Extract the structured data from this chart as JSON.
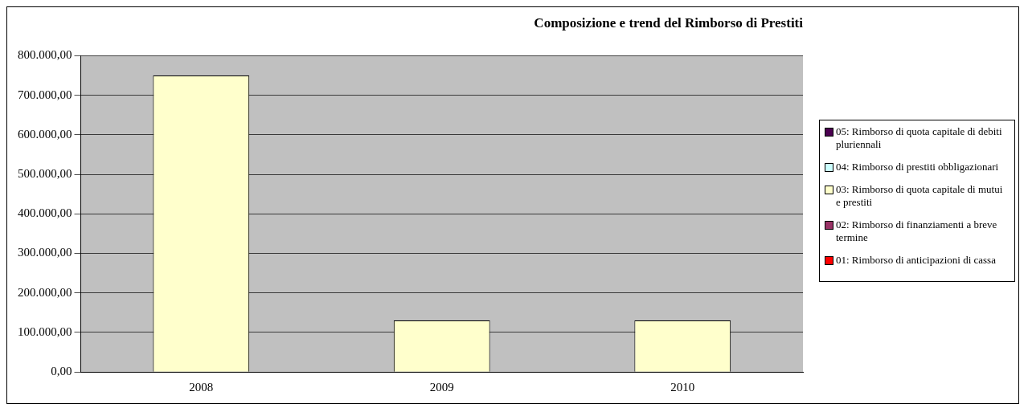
{
  "chart_data": {
    "type": "bar",
    "title": "Composizione e trend del Rimborso di Prestiti",
    "categories": [
      "2008",
      "2009",
      "2010"
    ],
    "stacked": true,
    "legend": "right",
    "grid": "y",
    "series": [
      {
        "name": "01: Rimborso di anticipazioni di cassa",
        "color": "#ff0000",
        "values": [
          0,
          0,
          0
        ]
      },
      {
        "name": "02: Rimborso di finanziamenti a breve termine",
        "color": "#993366",
        "values": [
          0,
          0,
          0
        ]
      },
      {
        "name": "03: Rimborso di quota capitale di mutui e prestiti",
        "color": "#ffffcc",
        "values": [
          750000,
          130000,
          130000
        ]
      },
      {
        "name": "04: Rimborso di prestiti obbligazionari",
        "color": "#ccffff",
        "values": [
          0,
          0,
          0
        ]
      },
      {
        "name": "05: Rimborso di quota capitale di debiti pluriennali",
        "color": "#4b0050",
        "values": [
          0,
          0,
          0
        ]
      }
    ],
    "ylim": [
      0,
      800000
    ],
    "yticks": [
      {
        "value": 0,
        "label": "0,00"
      },
      {
        "value": 100000,
        "label": "100.000,00"
      },
      {
        "value": 200000,
        "label": "200.000,00"
      },
      {
        "value": 300000,
        "label": "300.000,00"
      },
      {
        "value": 400000,
        "label": "400.000,00"
      },
      {
        "value": 500000,
        "label": "500.000,00"
      },
      {
        "value": 600000,
        "label": "600.000,00"
      },
      {
        "value": 700000,
        "label": "700.000,00"
      },
      {
        "value": 800000,
        "label": "800.000,00"
      }
    ]
  }
}
